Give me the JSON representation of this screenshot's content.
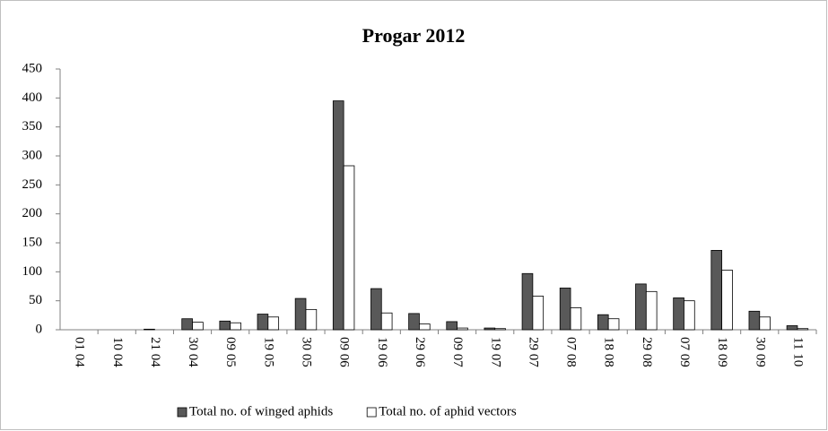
{
  "chart_data": {
    "type": "bar",
    "title": "Progar 2012",
    "categories": [
      "01 04",
      "10 04",
      "21 04",
      "30 04",
      "09 05",
      "19 05",
      "30 05",
      "09 06",
      "19 06",
      "29 06",
      "09 07",
      "19 07",
      "29 07",
      "07 08",
      "18 08",
      "29 08",
      "07 09",
      "18 09",
      "30 09",
      "11 10"
    ],
    "series": [
      {
        "name": "Total no. of winged aphids",
        "color": "#595959",
        "values": [
          0,
          0,
          1,
          19,
          15,
          27,
          54,
          395,
          71,
          28,
          14,
          3,
          97,
          72,
          26,
          79,
          55,
          137,
          32,
          7
        ]
      },
      {
        "name": "Total no. of aphid vectors",
        "color": "#ffffff",
        "values": [
          0,
          0,
          0,
          13,
          12,
          22,
          35,
          283,
          29,
          10,
          3,
          2,
          58,
          38,
          19,
          66,
          50,
          103,
          22,
          2
        ]
      }
    ],
    "ylim": [
      0,
      450
    ],
    "yticks": [
      0,
      50,
      100,
      150,
      200,
      250,
      300,
      350,
      400,
      450
    ],
    "grid": false,
    "legend": "bottom"
  }
}
